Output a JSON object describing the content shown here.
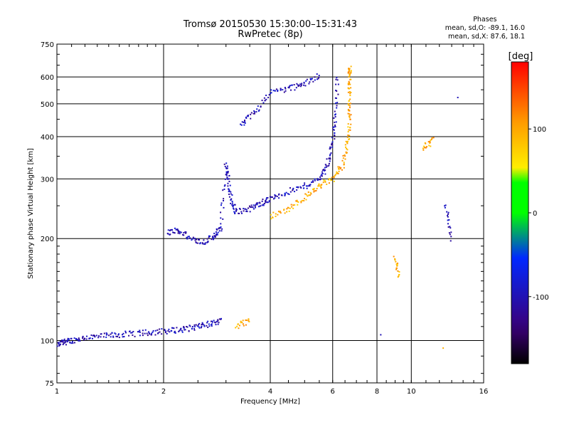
{
  "chart_data": {
    "type": "scatter",
    "title": "Tromsø 20150530 15:30:00–15:31:43",
    "subtitle": "RwPretec (8p)",
    "xlabel": "Frequency [MHz]",
    "ylabel": "Stationary phase Virtual Height [km]",
    "x_scale": "log",
    "y_scale": "log",
    "xlim": [
      1,
      16
    ],
    "ylim": [
      75,
      750
    ],
    "x_ticks": [
      1,
      2,
      4,
      6,
      8,
      10,
      16
    ],
    "x_tick_labels": [
      "1",
      "2",
      "4",
      "6",
      "8",
      "10",
      "16"
    ],
    "y_ticks": [
      75,
      100,
      200,
      300,
      400,
      500,
      600,
      750
    ],
    "y_tick_labels": [
      "75",
      "100",
      "200",
      "300",
      "400",
      "500",
      "600",
      "750"
    ],
    "grid": true,
    "phases": {
      "title": "Phases",
      "line_o": "mean, sd,O: -89.1, 16.0",
      "line_x": "mean, sd,X:  87.6, 18.1"
    },
    "colorbar": {
      "label": "[deg]",
      "range": [
        -180,
        180
      ],
      "ticks": [
        100,
        0,
        -100
      ],
      "tick_labels": [
        "100",
        "0",
        "-100"
      ]
    },
    "series": [
      {
        "name": "O",
        "points_approx": [
          [
            1.0,
            97
          ],
          [
            1.05,
            99
          ],
          [
            1.1,
            100
          ],
          [
            1.2,
            102
          ],
          [
            1.35,
            103
          ],
          [
            1.5,
            104
          ],
          [
            1.7,
            105
          ],
          [
            1.9,
            106
          ],
          [
            2.1,
            107
          ],
          [
            2.3,
            108
          ],
          [
            2.5,
            110
          ],
          [
            2.7,
            112
          ],
          [
            2.9,
            114
          ],
          [
            2.05,
            208
          ],
          [
            2.2,
            212
          ],
          [
            2.4,
            200
          ],
          [
            2.6,
            195
          ],
          [
            2.8,
            205
          ],
          [
            2.9,
            215
          ],
          [
            3.0,
            330
          ],
          [
            3.05,
            300
          ],
          [
            3.1,
            260
          ],
          [
            3.2,
            240
          ],
          [
            3.5,
            245
          ],
          [
            3.8,
            255
          ],
          [
            4.0,
            262
          ],
          [
            4.5,
            275
          ],
          [
            5.0,
            285
          ],
          [
            5.5,
            300
          ],
          [
            5.8,
            330
          ],
          [
            6.0,
            380
          ],
          [
            6.1,
            450
          ],
          [
            6.2,
            600
          ],
          [
            3.3,
            430
          ],
          [
            3.6,
            470
          ],
          [
            4.0,
            540
          ],
          [
            4.5,
            555
          ],
          [
            5.0,
            570
          ],
          [
            5.5,
            610
          ],
          [
            12.5,
            250
          ],
          [
            13.0,
            200
          ],
          [
            13.5,
            530
          ],
          [
            8.2,
            104
          ]
        ]
      },
      {
        "name": "X",
        "points_approx": [
          [
            3.2,
            110
          ],
          [
            3.5,
            115
          ],
          [
            4.0,
            232
          ],
          [
            4.5,
            245
          ],
          [
            5.0,
            265
          ],
          [
            5.5,
            285
          ],
          [
            6.0,
            300
          ],
          [
            6.4,
            330
          ],
          [
            6.6,
            380
          ],
          [
            6.7,
            450
          ],
          [
            6.7,
            520
          ],
          [
            6.7,
            600
          ],
          [
            6.7,
            640
          ],
          [
            9.0,
            175
          ],
          [
            9.2,
            155
          ],
          [
            10.8,
            370
          ],
          [
            11.5,
            390
          ],
          [
            12.3,
            95
          ]
        ]
      }
    ]
  }
}
